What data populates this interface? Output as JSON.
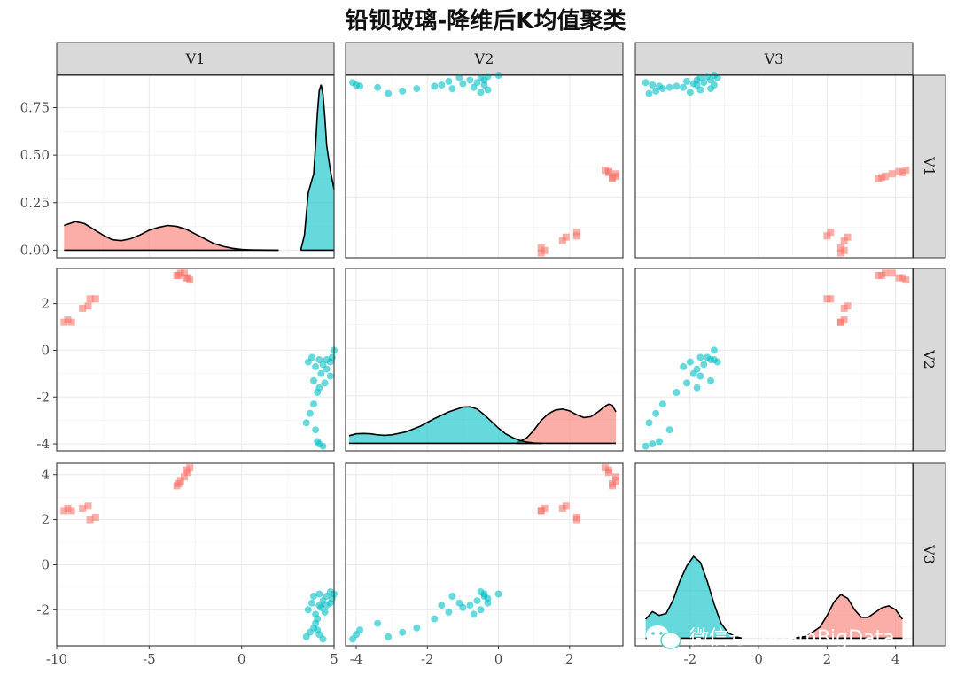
{
  "chart_data": {
    "type": "scatter",
    "title": "铅钡玻璃-降维后K均值聚类",
    "variables": [
      "V1",
      "V2",
      "V3"
    ],
    "colors": {
      "cluster1": "#F8766D",
      "cluster2": "#00BFC4"
    },
    "axes": {
      "V1": {
        "lim": [
          -10,
          5
        ],
        "ticks": [
          -10,
          -5,
          0,
          5
        ],
        "tick_labels": [
          "-10",
          "-5",
          "0",
          "5"
        ]
      },
      "V2": {
        "lim": [
          -4.3,
          3.5
        ],
        "ticks": [
          -4,
          -2,
          0,
          2
        ],
        "tick_labels": [
          "-4",
          "-2",
          "0",
          "2"
        ]
      },
      "V3": {
        "lim": [
          -3.6,
          4.5
        ],
        "ticks": [
          -2,
          0,
          2,
          4
        ],
        "tick_labels": [
          "-2",
          "0",
          "2",
          "4"
        ]
      }
    },
    "density_axis": {
      "lim": [
        -0.04,
        0.92
      ],
      "ticks": [
        0,
        0.25,
        0.5,
        0.75
      ],
      "tick_labels": [
        "0.00",
        "0.25",
        "0.50",
        "0.75"
      ]
    },
    "clusters": [
      {
        "id": "cluster1",
        "shape": "square",
        "points": [
          [
            -9.6,
            1.2,
            2.4
          ],
          [
            -9.4,
            1.3,
            2.5
          ],
          [
            -9.2,
            1.2,
            2.4
          ],
          [
            -8.6,
            1.8,
            2.5
          ],
          [
            -8.3,
            1.9,
            2.6
          ],
          [
            -8.2,
            2.2,
            2.0
          ],
          [
            -7.9,
            2.2,
            2.1
          ],
          [
            -3.5,
            3.2,
            3.5
          ],
          [
            -3.3,
            3.3,
            3.7
          ],
          [
            -3.1,
            3.3,
            3.9
          ],
          [
            -2.9,
            3.1,
            4.1
          ],
          [
            -2.8,
            3.0,
            4.3
          ],
          [
            -3.4,
            3.2,
            3.6
          ],
          [
            -3.0,
            3.1,
            4.2
          ]
        ],
        "density": {
          "V1": {
            "x": [
              -9.6,
              -9.0,
              -8.5,
              -8.0,
              -7.5,
              -7.0,
              -6.5,
              -6.0,
              -5.5,
              -5.0,
              -4.5,
              -4.0,
              -3.5,
              -3.0,
              -2.5,
              -2.0,
              -1.5,
              -1.0,
              -0.5,
              0.0,
              0.5,
              1.0,
              1.5,
              2.0
            ],
            "y": [
              0.13,
              0.15,
              0.14,
              0.11,
              0.08,
              0.055,
              0.05,
              0.06,
              0.08,
              0.105,
              0.12,
              0.13,
              0.125,
              0.11,
              0.085,
              0.06,
              0.035,
              0.02,
              0.01,
              0.004,
              0.002,
              0.001,
              0.0005,
              0.0
            ]
          },
          "V2": {
            "x": [
              0.5,
              0.8,
              1.0,
              1.2,
              1.4,
              1.6,
              1.8,
              2.0,
              2.2,
              2.4,
              2.6,
              2.8,
              3.0,
              3.1,
              3.2,
              3.3
            ],
            "y": [
              0.0,
              0.03,
              0.07,
              0.12,
              0.155,
              0.175,
              0.18,
              0.17,
              0.15,
              0.135,
              0.14,
              0.165,
              0.195,
              0.205,
              0.2,
              0.165
            ]
          },
          "V3": {
            "x": [
              1.0,
              1.4,
              1.8,
              2.0,
              2.2,
              2.4,
              2.6,
              2.8,
              3.0,
              3.2,
              3.4,
              3.6,
              3.8,
              4.0,
              4.2
            ],
            "y": [
              0.0,
              0.01,
              0.06,
              0.12,
              0.19,
              0.23,
              0.21,
              0.15,
              0.11,
              0.11,
              0.135,
              0.16,
              0.17,
              0.15,
              0.1
            ]
          }
        }
      },
      {
        "id": "cluster2",
        "shape": "circle",
        "points": [
          [
            4.2,
            -0.4,
            -1.3
          ],
          [
            4.4,
            -0.6,
            -1.6
          ],
          [
            4.6,
            -0.8,
            -1.8
          ],
          [
            4.8,
            -0.5,
            -1.2
          ],
          [
            4.9,
            -0.3,
            -1.5
          ],
          [
            5.0,
            0.0,
            -1.3
          ],
          [
            3.6,
            -0.5,
            -2.0
          ],
          [
            3.8,
            -0.3,
            -1.7
          ],
          [
            4.0,
            -0.7,
            -2.2
          ],
          [
            4.3,
            -1.0,
            -1.9
          ],
          [
            4.5,
            -1.4,
            -2.1
          ],
          [
            4.1,
            -1.8,
            -2.4
          ],
          [
            3.9,
            -2.3,
            -2.8
          ],
          [
            3.7,
            -2.7,
            -3.0
          ],
          [
            3.5,
            -3.1,
            -3.2
          ],
          [
            4.0,
            -3.4,
            -2.6
          ],
          [
            4.1,
            -3.9,
            -2.9
          ],
          [
            4.2,
            -4.0,
            -3.1
          ],
          [
            4.4,
            -4.1,
            -3.3
          ],
          [
            3.9,
            -1.3,
            -1.4
          ],
          [
            4.2,
            -1.6,
            -1.8
          ],
          [
            4.6,
            -0.4,
            -1.4
          ],
          [
            4.8,
            -1.1,
            -1.7
          ]
        ],
        "density": {
          "V1": {
            "x": [
              3.2,
              3.4,
              3.6,
              3.8,
              3.9,
              4.0,
              4.1,
              4.2,
              4.3,
              4.4,
              4.5,
              4.6,
              4.8,
              5.0
            ],
            "y": [
              0.0,
              0.08,
              0.3,
              0.37,
              0.4,
              0.55,
              0.72,
              0.84,
              0.87,
              0.82,
              0.7,
              0.55,
              0.42,
              0.32
            ]
          },
          "V2": {
            "x": [
              -4.2,
              -4.0,
              -3.8,
              -3.6,
              -3.4,
              -3.2,
              -3.0,
              -2.6,
              -2.2,
              -1.8,
              -1.4,
              -1.0,
              -0.8,
              -0.6,
              -0.4,
              -0.2,
              0.0,
              0.2,
              0.4,
              0.6,
              0.8,
              1.0,
              1.2
            ],
            "y": [
              0.04,
              0.05,
              0.052,
              0.05,
              0.045,
              0.042,
              0.045,
              0.06,
              0.09,
              0.13,
              0.165,
              0.19,
              0.192,
              0.18,
              0.15,
              0.115,
              0.08,
              0.05,
              0.03,
              0.015,
              0.006,
              0.002,
              0.0
            ]
          },
          "V3": {
            "x": [
              -3.3,
              -3.1,
              -2.9,
              -2.7,
              -2.5,
              -2.3,
              -2.1,
              -1.9,
              -1.7,
              -1.5,
              -1.3,
              -1.1,
              -0.9,
              -0.7,
              -0.5
            ],
            "y": [
              0.1,
              0.14,
              0.12,
              0.13,
              0.2,
              0.3,
              0.38,
              0.43,
              0.4,
              0.3,
              0.18,
              0.08,
              0.03,
              0.01,
              0.0
            ]
          }
        }
      }
    ]
  },
  "watermark": "微信号: AdamBigData"
}
